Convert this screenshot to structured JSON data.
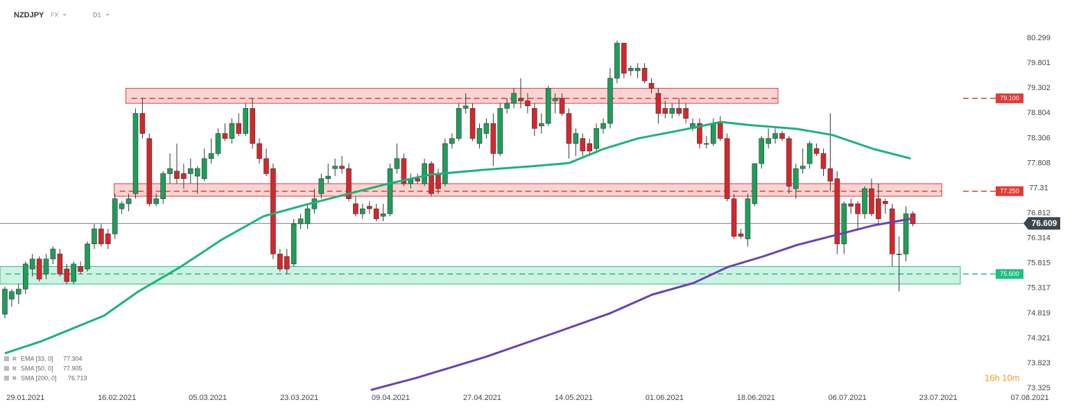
{
  "chart_data": {
    "type": "candlestick",
    "symbol": "NZDJPY",
    "market": "FX",
    "interval": "D1",
    "timer": "16h 10m",
    "up_color": "#1f9d5a",
    "down_color": "#d7262b",
    "ylim": [
      73.215,
      81.059
    ],
    "xlim": [
      -0.706,
      155.14
    ],
    "yticks": [
      80.299,
      79.801,
      79.302,
      78.804,
      78.306,
      77.808,
      77.31,
      76.812,
      76.314,
      75.815,
      75.317,
      74.819,
      74.321,
      73.823,
      73.325
    ],
    "xticks": [
      {
        "value": 3.0,
        "label": "29.01.2021"
      },
      {
        "value": 16.3,
        "label": "16.02.2021"
      },
      {
        "value": 29.5,
        "label": "05.03.2021"
      },
      {
        "value": 42.8,
        "label": "23.03.2021"
      },
      {
        "value": 56.1,
        "label": "09.04.2021"
      },
      {
        "value": 69.4,
        "label": "27.04.2021"
      },
      {
        "value": 82.7,
        "label": "14.05.2021"
      },
      {
        "value": 95.9,
        "label": "01.06.2021"
      },
      {
        "value": 109.2,
        "label": "18.06.2021"
      },
      {
        "value": 122.5,
        "label": "06.07.2021"
      },
      {
        "value": 135.7,
        "label": "23.07.2021"
      },
      {
        "value": 149.0,
        "label": "07.08.2021"
      }
    ],
    "candles": [
      [
        74.8,
        75.35,
        74.72,
        75.3
      ],
      [
        75.1,
        75.3,
        74.95,
        75.25
      ],
      [
        75.2,
        75.4,
        75.0,
        75.3
      ],
      [
        75.3,
        75.85,
        75.2,
        75.8
      ],
      [
        75.7,
        76.0,
        75.55,
        75.9
      ],
      [
        75.9,
        75.95,
        75.45,
        75.5
      ],
      [
        75.6,
        76.0,
        75.5,
        75.9
      ],
      [
        75.9,
        76.15,
        75.8,
        76.1
      ],
      [
        76.0,
        76.1,
        75.55,
        75.6
      ],
      [
        75.7,
        75.8,
        75.4,
        75.45
      ],
      [
        75.45,
        75.85,
        75.4,
        75.8
      ],
      [
        75.75,
        75.85,
        75.6,
        75.65
      ],
      [
        75.7,
        76.25,
        75.65,
        76.2
      ],
      [
        76.2,
        76.6,
        76.1,
        76.5
      ],
      [
        76.5,
        76.6,
        76.15,
        76.2
      ],
      [
        76.4,
        76.5,
        76.1,
        76.2
      ],
      [
        76.4,
        77.2,
        76.3,
        77.1
      ],
      [
        76.9,
        77.05,
        76.8,
        77.0
      ],
      [
        77.0,
        77.2,
        76.85,
        77.1
      ],
      [
        77.2,
        78.9,
        77.1,
        78.8
      ],
      [
        78.8,
        79.1,
        78.3,
        78.4
      ],
      [
        78.3,
        78.4,
        76.95,
        77.0
      ],
      [
        77.0,
        77.2,
        76.95,
        77.1
      ],
      [
        77.1,
        77.65,
        77.0,
        77.6
      ],
      [
        77.6,
        78.0,
        77.4,
        77.7
      ],
      [
        77.65,
        78.2,
        77.4,
        77.5
      ],
      [
        77.6,
        77.8,
        77.3,
        77.5
      ],
      [
        77.6,
        77.9,
        77.4,
        77.7
      ],
      [
        77.55,
        77.75,
        77.2,
        77.7
      ],
      [
        77.5,
        78.1,
        77.45,
        77.9
      ],
      [
        77.9,
        78.3,
        77.8,
        78.0
      ],
      [
        78.0,
        78.5,
        77.95,
        78.4
      ],
      [
        78.4,
        78.6,
        78.25,
        78.3
      ],
      [
        78.3,
        78.7,
        78.2,
        78.6
      ],
      [
        78.6,
        78.8,
        78.35,
        78.4
      ],
      [
        78.4,
        79.0,
        78.35,
        78.9
      ],
      [
        78.9,
        79.1,
        78.1,
        78.2
      ],
      [
        78.2,
        78.3,
        77.8,
        77.9
      ],
      [
        77.9,
        78.1,
        77.55,
        77.6
      ],
      [
        77.7,
        77.8,
        75.9,
        76.0
      ],
      [
        76.0,
        76.1,
        75.65,
        75.7
      ],
      [
        75.95,
        76.1,
        75.6,
        75.7
      ],
      [
        75.8,
        76.7,
        75.75,
        76.6
      ],
      [
        76.6,
        76.8,
        76.5,
        76.7
      ],
      [
        76.6,
        77.0,
        76.5,
        76.9
      ],
      [
        76.9,
        77.3,
        76.8,
        77.1
      ],
      [
        77.2,
        77.6,
        77.1,
        77.5
      ],
      [
        77.5,
        77.8,
        77.4,
        77.55
      ],
      [
        77.7,
        77.9,
        77.55,
        77.75
      ],
      [
        77.75,
        77.95,
        77.6,
        77.7
      ],
      [
        77.7,
        77.8,
        77.05,
        77.1
      ],
      [
        77.0,
        77.15,
        76.75,
        76.8
      ],
      [
        76.8,
        77.0,
        76.7,
        76.9
      ],
      [
        76.95,
        77.05,
        76.8,
        76.9
      ],
      [
        76.9,
        77.0,
        76.65,
        76.7
      ],
      [
        76.75,
        77.0,
        76.65,
        76.8
      ],
      [
        76.8,
        77.8,
        76.75,
        77.7
      ],
      [
        77.7,
        78.2,
        77.6,
        77.9
      ],
      [
        77.9,
        78.0,
        77.35,
        77.4
      ],
      [
        77.4,
        77.6,
        77.3,
        77.5
      ],
      [
        77.5,
        77.6,
        77.4,
        77.45
      ],
      [
        77.4,
        77.9,
        77.35,
        77.8
      ],
      [
        77.8,
        77.85,
        77.15,
        77.2
      ],
      [
        77.6,
        77.7,
        77.2,
        77.3
      ],
      [
        77.4,
        78.3,
        77.35,
        78.2
      ],
      [
        78.2,
        78.4,
        78.1,
        78.3
      ],
      [
        78.3,
        79.0,
        78.25,
        78.9
      ],
      [
        78.9,
        79.2,
        78.8,
        78.95
      ],
      [
        78.9,
        79.0,
        78.25,
        78.3
      ],
      [
        78.2,
        78.6,
        78.1,
        78.5
      ],
      [
        78.4,
        78.7,
        78.3,
        78.6
      ],
      [
        78.6,
        78.8,
        77.75,
        78.0
      ],
      [
        78.0,
        79.0,
        77.95,
        78.9
      ],
      [
        78.9,
        79.1,
        78.8,
        79.0
      ],
      [
        79.0,
        79.3,
        78.9,
        79.2
      ],
      [
        79.1,
        79.5,
        78.9,
        79.05
      ],
      [
        79.05,
        79.2,
        78.8,
        78.95
      ],
      [
        78.9,
        79.0,
        78.35,
        78.5
      ],
      [
        78.55,
        78.8,
        78.4,
        78.6
      ],
      [
        78.6,
        79.35,
        78.55,
        79.3
      ],
      [
        79.05,
        79.2,
        78.8,
        79.1
      ],
      [
        79.1,
        79.2,
        78.75,
        78.8
      ],
      [
        78.8,
        78.9,
        77.9,
        78.2
      ],
      [
        78.2,
        78.5,
        77.95,
        78.4
      ],
      [
        78.3,
        78.4,
        77.95,
        78.05
      ],
      [
        78.2,
        78.3,
        77.95,
        78.05
      ],
      [
        78.1,
        78.6,
        78.0,
        78.5
      ],
      [
        78.5,
        78.7,
        78.4,
        78.6
      ],
      [
        78.6,
        79.7,
        78.5,
        79.5
      ],
      [
        79.5,
        80.25,
        79.4,
        80.2
      ],
      [
        80.2,
        80.2,
        79.5,
        79.6
      ],
      [
        79.65,
        79.75,
        79.55,
        79.7
      ],
      [
        79.65,
        79.8,
        79.5,
        79.7
      ],
      [
        79.7,
        79.8,
        79.4,
        79.45
      ],
      [
        79.4,
        79.5,
        79.2,
        79.3
      ],
      [
        79.2,
        79.3,
        78.6,
        78.8
      ],
      [
        78.9,
        79.05,
        78.7,
        78.8
      ],
      [
        78.8,
        79.0,
        78.7,
        78.9
      ],
      [
        78.9,
        79.1,
        78.75,
        78.8
      ],
      [
        78.9,
        79.0,
        78.6,
        78.7
      ],
      [
        78.5,
        78.7,
        78.45,
        78.6
      ],
      [
        78.6,
        78.7,
        78.1,
        78.2
      ],
      [
        78.2,
        78.35,
        78.1,
        78.2
      ],
      [
        78.2,
        78.7,
        78.15,
        78.6
      ],
      [
        78.6,
        78.75,
        78.25,
        78.3
      ],
      [
        78.3,
        78.4,
        77.05,
        77.1
      ],
      [
        77.1,
        77.2,
        76.3,
        76.35
      ],
      [
        76.4,
        76.5,
        76.3,
        76.35
      ],
      [
        76.3,
        77.2,
        76.15,
        77.1
      ],
      [
        77.0,
        77.8,
        76.95,
        77.8
      ],
      [
        77.8,
        78.35,
        77.7,
        78.3
      ],
      [
        78.2,
        78.5,
        78.1,
        78.3
      ],
      [
        78.3,
        78.5,
        78.2,
        78.4
      ],
      [
        78.4,
        78.45,
        78.25,
        78.3
      ],
      [
        78.3,
        78.35,
        77.2,
        77.35
      ],
      [
        77.3,
        77.8,
        77.1,
        77.7
      ],
      [
        77.7,
        78.1,
        77.6,
        77.75
      ],
      [
        77.8,
        78.25,
        77.7,
        78.2
      ],
      [
        78.1,
        78.2,
        77.95,
        78.0
      ],
      [
        78.0,
        78.1,
        77.55,
        77.7
      ],
      [
        77.7,
        78.8,
        77.25,
        77.45
      ],
      [
        77.5,
        77.65,
        76.0,
        76.2
      ],
      [
        76.2,
        77.05,
        76.0,
        77.0
      ],
      [
        77.0,
        77.1,
        76.8,
        76.95
      ],
      [
        77.0,
        77.05,
        76.5,
        76.8
      ],
      [
        76.8,
        77.35,
        76.7,
        77.3
      ],
      [
        77.3,
        77.5,
        76.75,
        76.8
      ],
      [
        77.1,
        77.4,
        76.6,
        76.7
      ],
      [
        77.05,
        77.1,
        76.8,
        77.0
      ],
      [
        76.9,
        77.0,
        75.75,
        76.0
      ],
      [
        76.0,
        76.35,
        75.25,
        76.0
      ],
      [
        76.0,
        76.95,
        75.85,
        76.8
      ],
      [
        76.8,
        76.85,
        76.55,
        76.6
      ]
    ],
    "lines": [
      {
        "name": "SMA [50, 0]",
        "color": "#19b37a",
        "x": [
          0,
          5.3,
          14.4,
          19.5,
          25.5,
          31.6,
          37.6,
          43.7,
          49.7,
          55.7,
          61.8,
          69.9,
          76.0,
          82.0,
          87.0,
          92.0,
          98.1,
          104.1,
          108.1,
          115.2,
          120.3,
          126.3,
          131.7
        ],
        "values": [
          74.02,
          74.26,
          74.77,
          75.26,
          75.74,
          76.29,
          76.75,
          76.98,
          77.19,
          77.4,
          77.58,
          77.68,
          77.74,
          77.81,
          78.09,
          78.3,
          78.46,
          78.63,
          78.57,
          78.49,
          78.37,
          78.09,
          77.9
        ]
      },
      {
        "name": "SMA [200, 0]",
        "color": "#6a3fb8",
        "x": [
          53.2,
          59.8,
          69.9,
          80.0,
          88.0,
          94.1,
          100.1,
          105.1,
          110.2,
          115.2,
          120.3,
          126.3,
          131.7
        ],
        "values": [
          73.29,
          73.53,
          73.95,
          74.43,
          74.82,
          75.19,
          75.42,
          75.74,
          75.95,
          76.18,
          76.36,
          76.57,
          76.7
        ]
      }
    ],
    "zones": [
      {
        "low": 79.0,
        "high": 79.3,
        "x": [
          17.6,
          112.4
        ],
        "level": {
          "value": 79.1,
          "label": "79.100"
        },
        "color": "#e53935"
      },
      {
        "low": 77.15,
        "high": 77.4,
        "x": [
          15.9,
          136.2
        ],
        "level": {
          "value": 77.25,
          "label": "77.250"
        },
        "color": "#e53935"
      },
      {
        "low": 75.4,
        "high": 75.75,
        "x": [
          -0.7,
          138.9
        ],
        "level": {
          "value": 75.6,
          "label": "75.600"
        },
        "color": "#1fbf83"
      }
    ],
    "last_price": 76.609,
    "legend": [
      {
        "name": "EMA [33, 0]",
        "value": 77.304
      },
      {
        "name": "SMA [50, 0]",
        "value": 77.905
      },
      {
        "name": "SMA [200, 0]",
        "value": 76.713
      }
    ]
  }
}
